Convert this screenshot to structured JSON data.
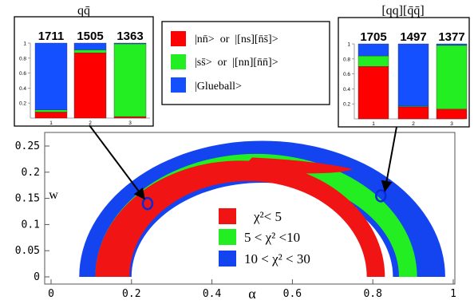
{
  "chart_data": [
    {
      "type": "scatter",
      "xlabel": "α",
      "ylabel": "w",
      "xlim": [
        0,
        1
      ],
      "ylim": [
        0,
        0.26
      ],
      "x_ticks": [
        "0",
        "0.2",
        "0.4",
        "0.6",
        "0.8",
        "1"
      ],
      "x_tick_values": [
        0,
        0.2,
        0.4,
        0.6,
        0.8,
        1
      ],
      "y_ticks": [
        "0",
        "0.05",
        "0.1",
        "0.15",
        "0.2",
        "0.25"
      ],
      "y_tick_values": [
        0,
        0.05,
        0.1,
        0.15,
        0.2,
        0.25
      ],
      "grid": false,
      "legend_position": "center",
      "regions": [
        {
          "label": "10 < χ² < 30",
          "color": "#1444f0",
          "outer": {
            "center": 0.525,
            "rx": 0.455,
            "ry": 0.26
          },
          "inner": {
            "center": 0.525,
            "rx": 0.325,
            "ry": 0.18
          }
        },
        {
          "label": "5 < χ² < 10",
          "color": "#22ee22",
          "outer": {
            "center": 0.51,
            "rx": 0.4,
            "ry": 0.235
          },
          "inner": {
            "center": 0.52,
            "rx": 0.345,
            "ry": 0.19
          }
        },
        {
          "label": "χ² < 5",
          "color": "#f01414",
          "outer": {
            "center": 0.47,
            "rx": 0.36,
            "ry": 0.222
          },
          "inner": {
            "center": 0.49,
            "rx": 0.295,
            "ry": 0.183
          },
          "upper_tail_end_alpha": 0.75
        }
      ],
      "marked_points": [
        {
          "alpha": 0.24,
          "w": 0.14,
          "linked_to": "qq̄"
        },
        {
          "alpha": 0.82,
          "w": 0.155,
          "linked_to": "[qq][q̄q̄]"
        }
      ]
    },
    {
      "type": "bar",
      "title": "qq̄",
      "categories": [
        "1",
        "2",
        "3"
      ],
      "masses": [
        "1711",
        "1505",
        "1363"
      ],
      "stacked": true,
      "ylim": [
        0,
        1
      ],
      "y_ticks": [
        "0.2",
        "0.4",
        "0.6",
        "0.8",
        "1"
      ],
      "series": [
        {
          "name": "|nn̄> or |[ns][n̄s̄]>",
          "values": [
            0.08,
            0.87,
            0.02
          ]
        },
        {
          "name": "|ss̄> or |[nn][n̄n̄]>",
          "values": [
            0.03,
            0.04,
            0.97
          ]
        },
        {
          "name": "|Glueball>",
          "values": [
            0.89,
            0.09,
            0.01
          ]
        }
      ]
    },
    {
      "type": "bar",
      "title": "[qq][q̄q̄]",
      "categories": [
        "1",
        "2",
        "3"
      ],
      "masses": [
        "1705",
        "1497",
        "1377"
      ],
      "stacked": true,
      "ylim": [
        0,
        1
      ],
      "y_ticks": [
        "0.2",
        "0.4",
        "0.6",
        "0.8",
        "1"
      ],
      "series": [
        {
          "name": "|nn̄> or |[ns][n̄s̄]>",
          "values": [
            0.7,
            0.16,
            0.13
          ]
        },
        {
          "name": "|ss̄> or |[nn][n̄n̄]>",
          "values": [
            0.14,
            0.01,
            0.85
          ]
        },
        {
          "name": "|Glueball>",
          "values": [
            0.16,
            0.83,
            0.02
          ]
        }
      ]
    }
  ],
  "state_legend": [
    {
      "label": "|nn̄>  or  |[ns][n̄s̄]>",
      "color": "#ff0000"
    },
    {
      "label": "|ss̄>  or  |[nn][n̄n̄]>",
      "color": "#22ee22"
    },
    {
      "label": "|Glueball>",
      "color": "#1450ff"
    }
  ],
  "chi_legend": [
    {
      "label": "χ²< 5",
      "color": "#f01414"
    },
    {
      "label": "5 < χ² <10",
      "color": "#22ee22"
    },
    {
      "label": "10 < χ² < 30",
      "color": "#1444f0"
    }
  ]
}
